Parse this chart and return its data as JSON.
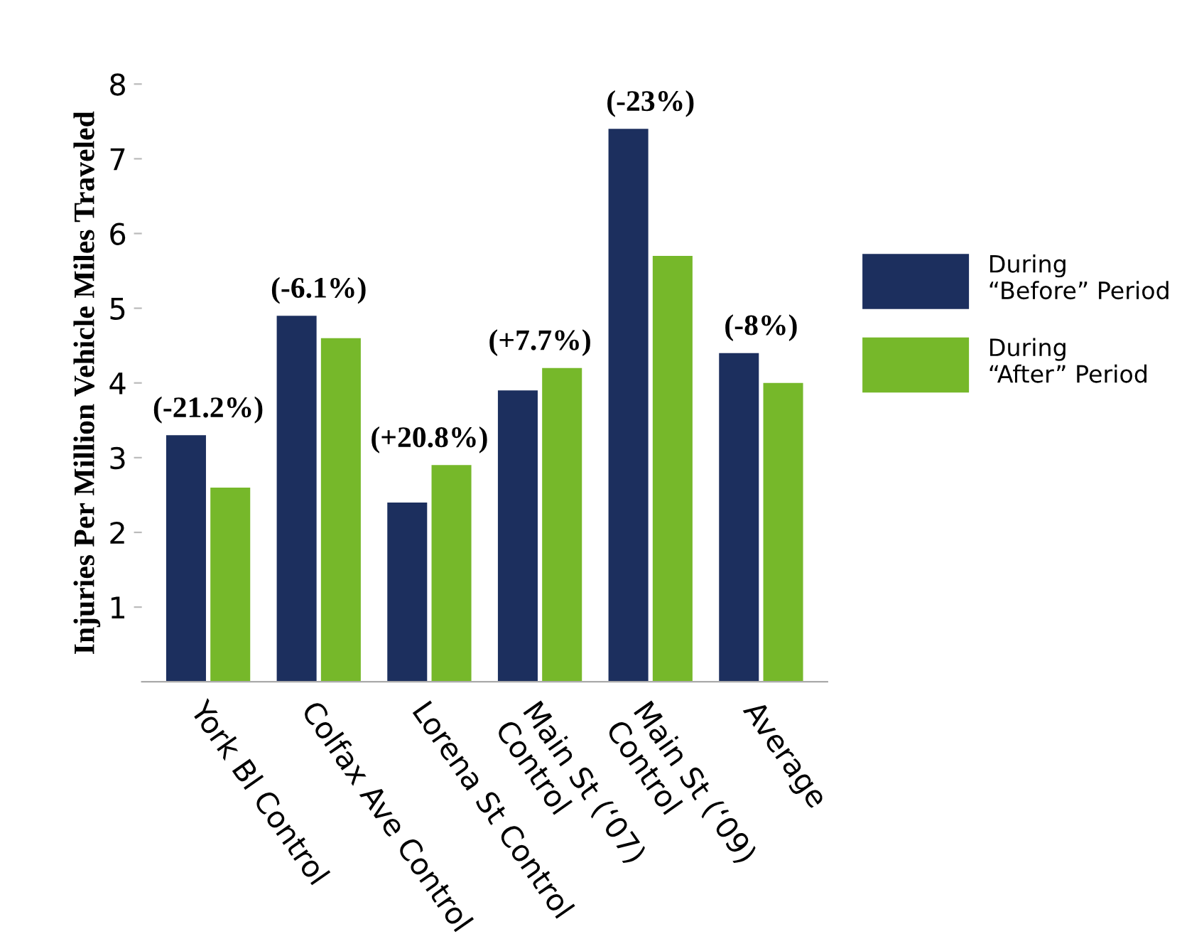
{
  "chart_data": {
    "type": "bar",
    "ylabel": "Injuries Per Million Vehicle Miles Traveled",
    "categories": [
      "York Bl Control",
      "Colfax Ave Control",
      "Lorena St Control",
      "Main St (‘07)\nControl",
      "Main St (‘09)\nControl",
      "Average"
    ],
    "series": [
      {
        "name": "During\n“Before” Period",
        "color": "#1c2f5e",
        "values": [
          3.3,
          4.9,
          2.4,
          3.9,
          7.4,
          4.4
        ]
      },
      {
        "name": "During\n“After” Period",
        "color": "#76b82a",
        "values": [
          2.6,
          4.6,
          2.9,
          4.2,
          5.7,
          4.0
        ]
      }
    ],
    "annotations": [
      "(-21.2%)",
      "(-6.1%)",
      "(+20.8%)",
      "(+7.7%)",
      "(-23%)",
      "(-8%)"
    ],
    "ylim": [
      0,
      8
    ],
    "yticks": [
      1,
      2,
      3,
      4,
      5,
      6,
      7,
      8
    ],
    "grid": false,
    "legend": "right"
  }
}
